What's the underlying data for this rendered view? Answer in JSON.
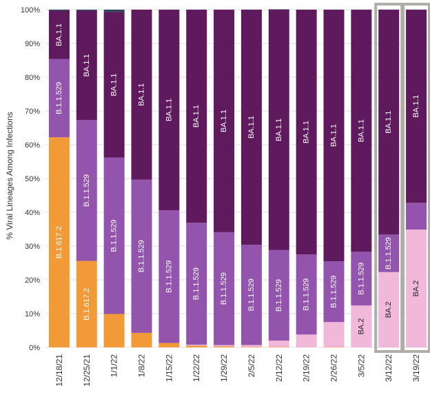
{
  "chart_data": {
    "type": "bar",
    "stacked": true,
    "title": "",
    "xlabel": "",
    "ylabel": "% Viral Lineages Among Infections",
    "ylim": [
      0,
      100
    ],
    "yticks": [
      "0%",
      "10%",
      "20%",
      "30%",
      "40%",
      "50%",
      "60%",
      "70%",
      "80%",
      "90%",
      "100%"
    ],
    "categories": [
      "12/18/21",
      "12/25/21",
      "1/1/22",
      "1/8/22",
      "1/15/22",
      "1/22/22",
      "1/29/22",
      "2/5/22",
      "2/12/22",
      "2/19/22",
      "2/26/22",
      "3/5/22",
      "3/12/22",
      "3/19/22"
    ],
    "highlighted_categories": [
      "3/12/22",
      "3/19/22"
    ],
    "series": [
      {
        "name": "B.1.617.2",
        "color": "#F29A38",
        "values": [
          62.2,
          25.6,
          9.9,
          4.3,
          1.3,
          0.5,
          0.3,
          0.1,
          0.1,
          0,
          0.1,
          0,
          0,
          0
        ]
      },
      {
        "name": "BA.2",
        "color": "#F2B8DA",
        "values": [
          0,
          0,
          0,
          0,
          0,
          0.3,
          0.4,
          0.6,
          1.9,
          3.8,
          7.4,
          12.4,
          22.3,
          34.9
        ]
      },
      {
        "name": "B.1.1.529",
        "color": "#9254AC",
        "values": [
          23.2,
          41.7,
          46.3,
          45.4,
          39.3,
          36.1,
          33.4,
          29.7,
          26.8,
          23.7,
          18.0,
          15.9,
          11.1,
          7.9
        ]
      },
      {
        "name": "BA.1.1",
        "color": "#5F1A5E",
        "values": [
          14.3,
          32.4,
          43.1,
          50.3,
          59.4,
          63.1,
          65.9,
          69.6,
          71.2,
          72.5,
          74.5,
          71.7,
          66.6,
          57.2
        ]
      },
      {
        "name": "",
        "color": "#2E4758",
        "values": [
          0.3,
          0.3,
          0.7,
          0,
          0,
          0,
          0,
          0,
          0.1,
          0,
          0,
          0,
          0,
          0
        ]
      }
    ],
    "labels": {
      "B.1.617.2": [
        true,
        true,
        false,
        false,
        false,
        false,
        false,
        false,
        false,
        false,
        false,
        false,
        false,
        false
      ],
      "BA.2": [
        false,
        false,
        false,
        false,
        false,
        false,
        false,
        false,
        false,
        false,
        false,
        true,
        true,
        true
      ],
      "B.1.1.529": [
        true,
        true,
        true,
        true,
        true,
        true,
        true,
        true,
        true,
        true,
        true,
        true,
        true,
        false
      ],
      "BA.1.1": [
        true,
        true,
        true,
        true,
        true,
        true,
        true,
        true,
        true,
        true,
        true,
        true,
        true,
        true
      ]
    },
    "grid": true,
    "legend": "none"
  }
}
